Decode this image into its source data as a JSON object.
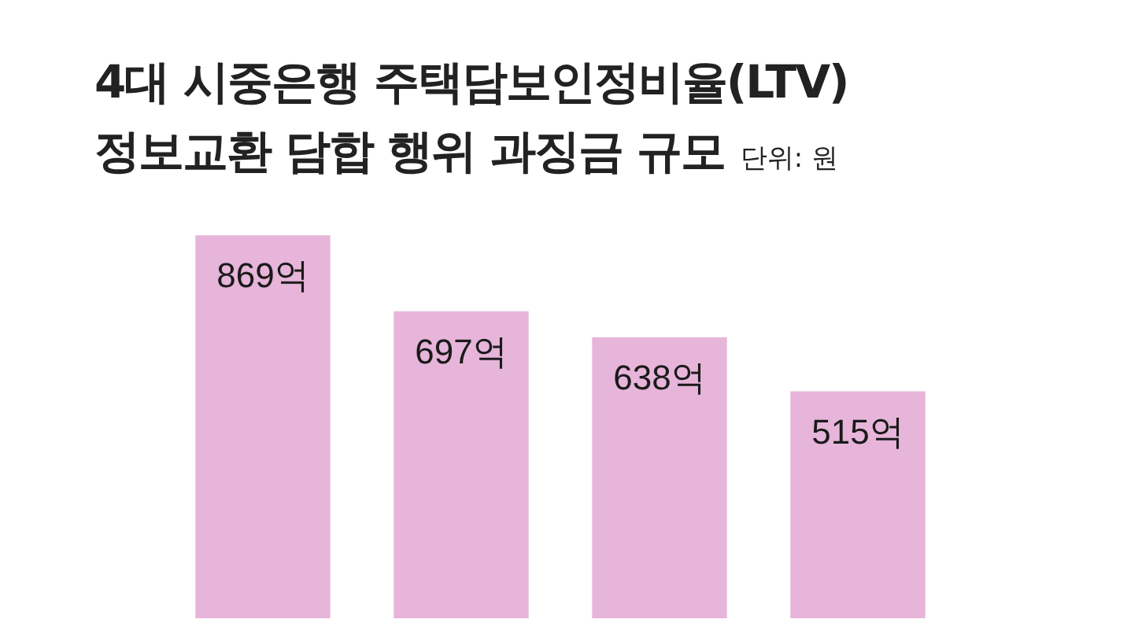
{
  "chart_data": {
    "type": "bar",
    "title": "4대 시중은행 주택담보인정비율(LTV)\n정보교환 담합 행위 과징금 규모",
    "subtitle": "단위: 원",
    "categories": [
      null,
      null,
      null,
      null
    ],
    "values": [
      869,
      697,
      638,
      515
    ],
    "value_labels": [
      "869억",
      "697억",
      "638억",
      "515억"
    ],
    "color": "#e6b5d9"
  }
}
